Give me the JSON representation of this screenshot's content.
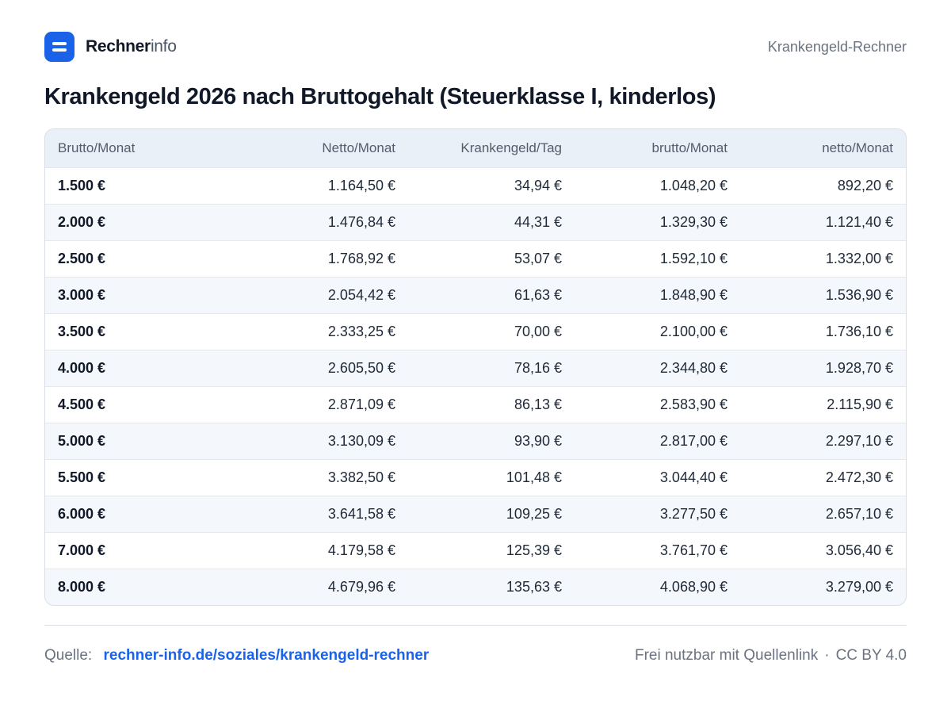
{
  "brand": {
    "name_bold": "Rechner",
    "name_light": "info"
  },
  "header": {
    "right_label": "Krankengeld-Rechner"
  },
  "title": "Krankengeld 2026 nach Bruttogehalt (Steuerklasse I, kinderlos)",
  "table": {
    "headers": [
      "Brutto/Monat",
      "Netto/Monat",
      "Krankengeld/Tag",
      "brutto/Monat",
      "netto/Monat"
    ],
    "rows": [
      [
        "1.500 €",
        "1.164,50 €",
        "34,94 €",
        "1.048,20 €",
        "892,20 €"
      ],
      [
        "2.000 €",
        "1.476,84 €",
        "44,31 €",
        "1.329,30 €",
        "1.121,40 €"
      ],
      [
        "2.500 €",
        "1.768,92 €",
        "53,07 €",
        "1.592,10 €",
        "1.332,00 €"
      ],
      [
        "3.000 €",
        "2.054,42 €",
        "61,63 €",
        "1.848,90 €",
        "1.536,90 €"
      ],
      [
        "3.500 €",
        "2.333,25 €",
        "70,00 €",
        "2.100,00 €",
        "1.736,10 €"
      ],
      [
        "4.000 €",
        "2.605,50 €",
        "78,16 €",
        "2.344,80 €",
        "1.928,70 €"
      ],
      [
        "4.500 €",
        "2.871,09 €",
        "86,13 €",
        "2.583,90 €",
        "2.115,90 €"
      ],
      [
        "5.000 €",
        "3.130,09 €",
        "93,90 €",
        "2.817,00 €",
        "2.297,10 €"
      ],
      [
        "5.500 €",
        "3.382,50 €",
        "101,48 €",
        "3.044,40 €",
        "2.472,30 €"
      ],
      [
        "6.000 €",
        "3.641,58 €",
        "109,25 €",
        "3.277,50 €",
        "2.657,10 €"
      ],
      [
        "7.000 €",
        "4.179,58 €",
        "125,39 €",
        "3.761,70 €",
        "3.056,40 €"
      ],
      [
        "8.000 €",
        "4.679,96 €",
        "135,63 €",
        "4.068,90 €",
        "3.279,00 €"
      ]
    ]
  },
  "footer": {
    "source_label": "Quelle:",
    "source_link": "rechner-info.de/soziales/krankengeld-rechner",
    "usage": "Frei nutzbar mit Quellenlink",
    "separator": "·",
    "license": "CC BY 4.0"
  },
  "colors": {
    "accent": "#1a63e8",
    "header_bg": "#eaf0f7",
    "stripe_bg": "#f4f7fb"
  },
  "icons": {
    "logo": "equals-logo-icon"
  }
}
